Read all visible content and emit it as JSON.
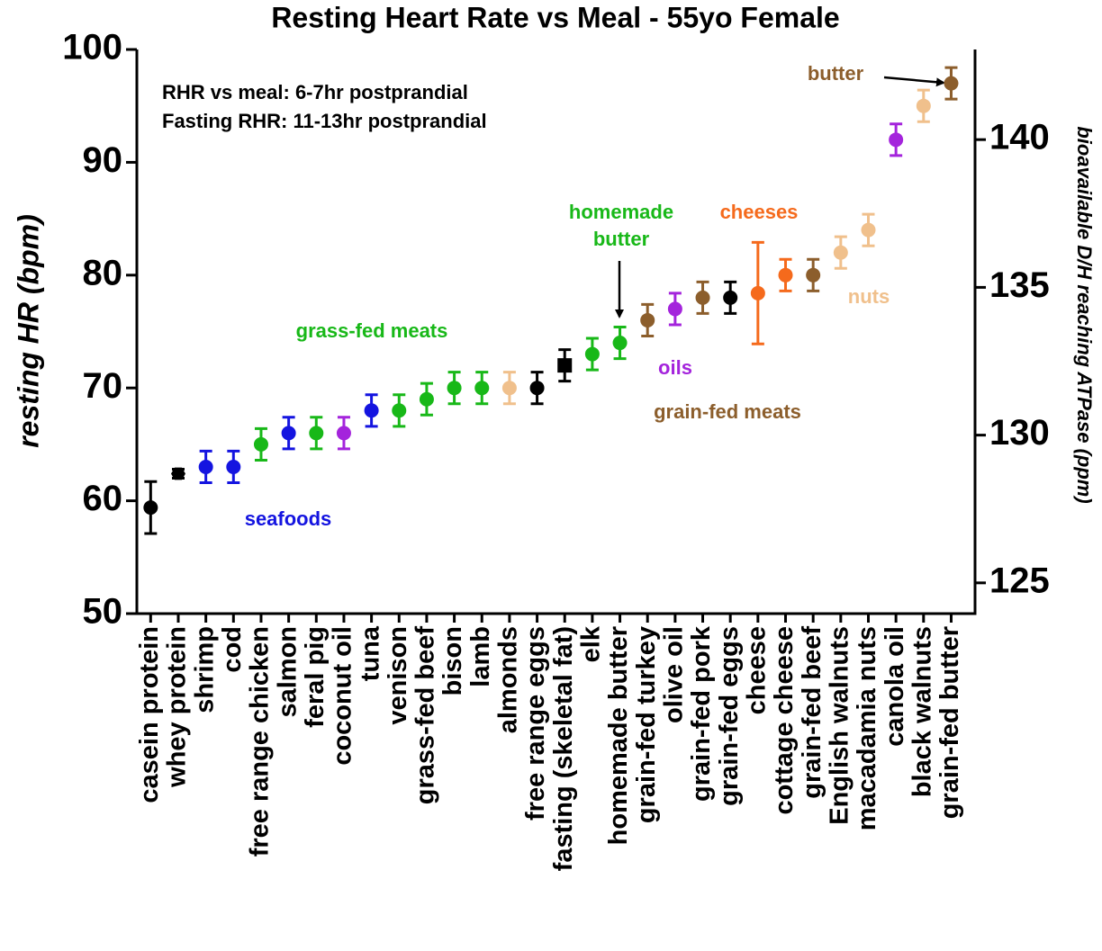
{
  "chart_data": {
    "type": "dot",
    "title": "Resting Heart Rate vs Meal - 55yo Female",
    "ylabel": "resting HR (bpm)",
    "y2label": "bioavailable D/H reaching ATPase (ppm)",
    "categories": [
      "casein protein",
      "whey protein",
      "shrimp",
      "cod",
      "free range chicken",
      "salmon",
      "feral pig",
      "coconut oil",
      "tuna",
      "venison",
      "grass-fed beef",
      "bison",
      "lamb",
      "almonds",
      "free range eggs",
      "fasting (skeletal fat)",
      "elk",
      "homemade butter",
      "grain-fed turkey",
      "olive oil",
      "grain-fed pork",
      "grain-fed eggs",
      "cheese",
      "cottage cheese",
      "grain-fed beef",
      "English walnuts",
      "macadamia nuts",
      "canola oil",
      "black walnuts",
      "grain-fed butter"
    ],
    "values": [
      59.4,
      62.4,
      63,
      63,
      65,
      66,
      66,
      66,
      68,
      68,
      69,
      70,
      70,
      70,
      70,
      72,
      73,
      74,
      76,
      77,
      78,
      78,
      78.4,
      80,
      80,
      82,
      84,
      92,
      95,
      97
    ],
    "errors": [
      2.3,
      0.4,
      1.4,
      1.4,
      1.4,
      1.4,
      1.4,
      1.4,
      1.4,
      1.4,
      1.4,
      1.4,
      1.4,
      1.4,
      1.4,
      1.4,
      1.4,
      1.4,
      1.4,
      1.4,
      1.4,
      1.4,
      4.5,
      1.4,
      1.4,
      1.4,
      1.4,
      1.4,
      1.4,
      1.4
    ],
    "colors": [
      "#000000",
      "#000000",
      "#1414e0",
      "#1414e0",
      "#18b818",
      "#1414e0",
      "#18b818",
      "#a424dc",
      "#1414e0",
      "#18b818",
      "#18b818",
      "#18b818",
      "#18b818",
      "#f0c08c",
      "#000000",
      "#000000",
      "#18b818",
      "#18b818",
      "#8c5e2c",
      "#a424dc",
      "#8c5e2c",
      "#000000",
      "#f56a1c",
      "#f56a1c",
      "#8c5e2c",
      "#f0c08c",
      "#f0c08c",
      "#a424dc",
      "#f0c08c",
      "#8c5e2c"
    ],
    "markers": [
      "circle",
      "hexagon",
      "circle",
      "circle",
      "circle",
      "circle",
      "circle",
      "circle",
      "circle",
      "circle",
      "circle",
      "circle",
      "circle",
      "circle",
      "circle",
      "square",
      "circle",
      "circle",
      "circle",
      "circle",
      "circle",
      "circle",
      "circle",
      "circle",
      "circle",
      "circle",
      "circle",
      "circle",
      "circle",
      "circle"
    ],
    "ylim": [
      50,
      100
    ],
    "yticks": [
      50,
      60,
      70,
      80,
      90,
      100
    ],
    "y2lim": [
      123.96,
      143.05
    ],
    "y2ticks": [
      125,
      130,
      135,
      140
    ],
    "annotations": [
      {
        "text": "RHR vs meal: 6-7hr postprandial",
        "color": "#000000"
      },
      {
        "text": "Fasting RHR: 11-13hr postprandial",
        "color": "#000000"
      },
      {
        "text": "seafoods",
        "color": "#1414e0"
      },
      {
        "text": "grass-fed meats",
        "color": "#18b818"
      },
      {
        "text": "homemade",
        "color": "#18b818"
      },
      {
        "text": "butter",
        "color": "#18b818"
      },
      {
        "text": "oils",
        "color": "#a424dc"
      },
      {
        "text": "grain-fed meats",
        "color": "#8c5e2c"
      },
      {
        "text": "cheeses",
        "color": "#f56a1c"
      },
      {
        "text": "nuts",
        "color": "#f0c08c"
      },
      {
        "text": "butter",
        "color": "#8c5e2c"
      }
    ]
  }
}
